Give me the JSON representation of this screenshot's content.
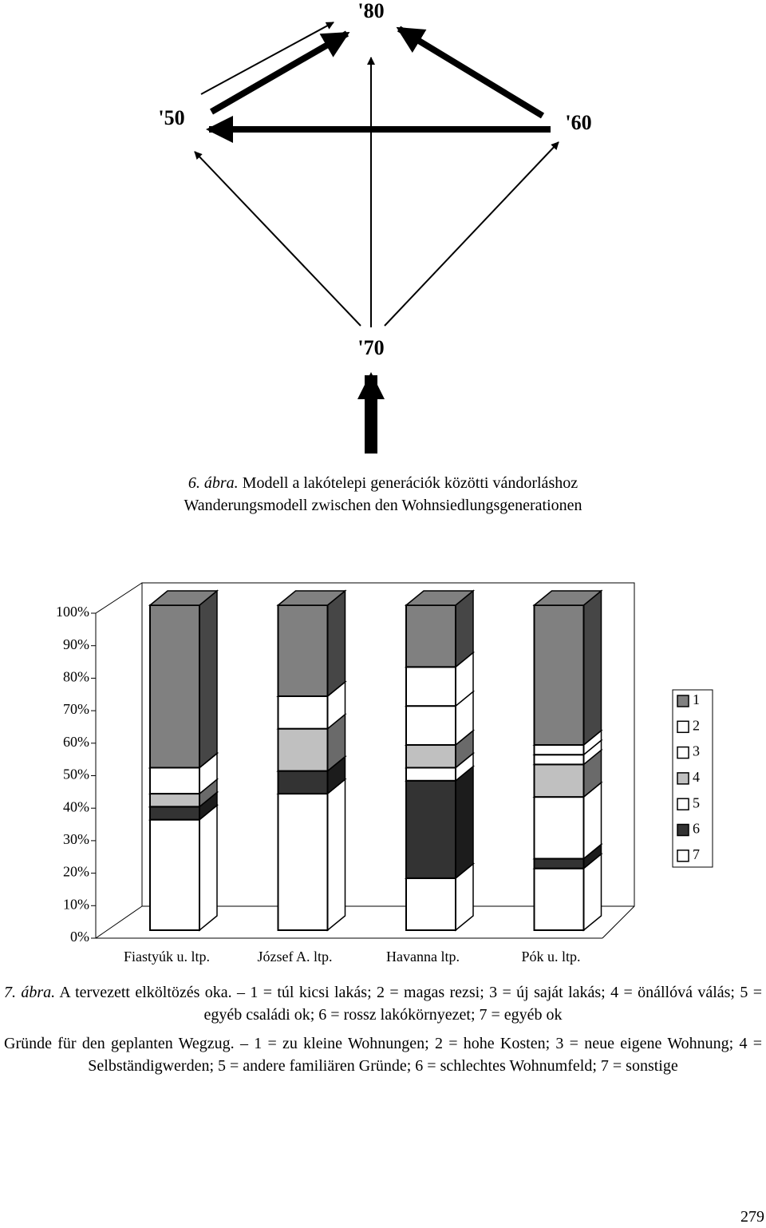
{
  "diagram": {
    "labels": [
      "'80",
      "'50",
      "'60",
      "'70"
    ]
  },
  "figure6": {
    "number": "6. ábra.",
    "hu": "Modell a lakótelepi generációk közötti vándorláshoz",
    "de": "Wanderungsmodell zwischen den Wohnsiedlungsgenerationen"
  },
  "chart_data": {
    "type": "stacked-bar-3d",
    "categories": [
      "Fiastyúk u. ltp.",
      "József A. ltp.",
      "Havanna ltp.",
      "Pók u. ltp."
    ],
    "series": [
      {
        "name": "1",
        "color": "#808080",
        "values": [
          50,
          28,
          19,
          43
        ]
      },
      {
        "name": "2",
        "color": "#ffffff",
        "values": [
          0,
          0,
          12,
          3
        ]
      },
      {
        "name": "3",
        "color": "#ffffff",
        "values": [
          8,
          10,
          12,
          3
        ]
      },
      {
        "name": "4",
        "color": "#c0c0c0",
        "values": [
          4,
          13,
          7,
          10
        ]
      },
      {
        "name": "5",
        "color": "#ffffff",
        "values": [
          0,
          0,
          4,
          19
        ]
      },
      {
        "name": "6",
        "color": "#333333",
        "values": [
          4,
          7,
          30,
          3
        ]
      },
      {
        "name": "7",
        "color": "#ffffff",
        "values": [
          34,
          42,
          16,
          19
        ]
      }
    ],
    "ylim": [
      0,
      100
    ],
    "yticks": [
      {
        "value": 0,
        "label": "0%"
      },
      {
        "value": 10,
        "label": "10%"
      },
      {
        "value": 20,
        "label": "20%"
      },
      {
        "value": 30,
        "label": "30%"
      },
      {
        "value": 40,
        "label": "40%"
      },
      {
        "value": 50,
        "label": "50%"
      },
      {
        "value": 60,
        "label": "60%"
      },
      {
        "value": 70,
        "label": "70%"
      },
      {
        "value": 80,
        "label": "80%"
      },
      {
        "value": 90,
        "label": "90%"
      },
      {
        "value": 100,
        "label": "100%"
      }
    ],
    "legend": "right"
  },
  "figure7": {
    "number": "7. ábra.",
    "hu": "A tervezett elköltözés oka. – 1 = túl kicsi lakás; 2 = magas rezsi; 3 = új saját lakás; 4 = önállóvá válás; 5 = egyéb családi ok; 6 = rossz lakókörnyezet; 7 = egyéb ok",
    "de": "Gründe für den geplanten Wegzug. – 1 = zu kleine Wohnungen; 2 = hohe Kosten; 3 = neue eigene Wohnung; 4 = Selbständigwerden; 5 = andere familiären Gründe; 6 = schlechtes Wohnumfeld; 7 = sonstige"
  },
  "page_number": "279"
}
